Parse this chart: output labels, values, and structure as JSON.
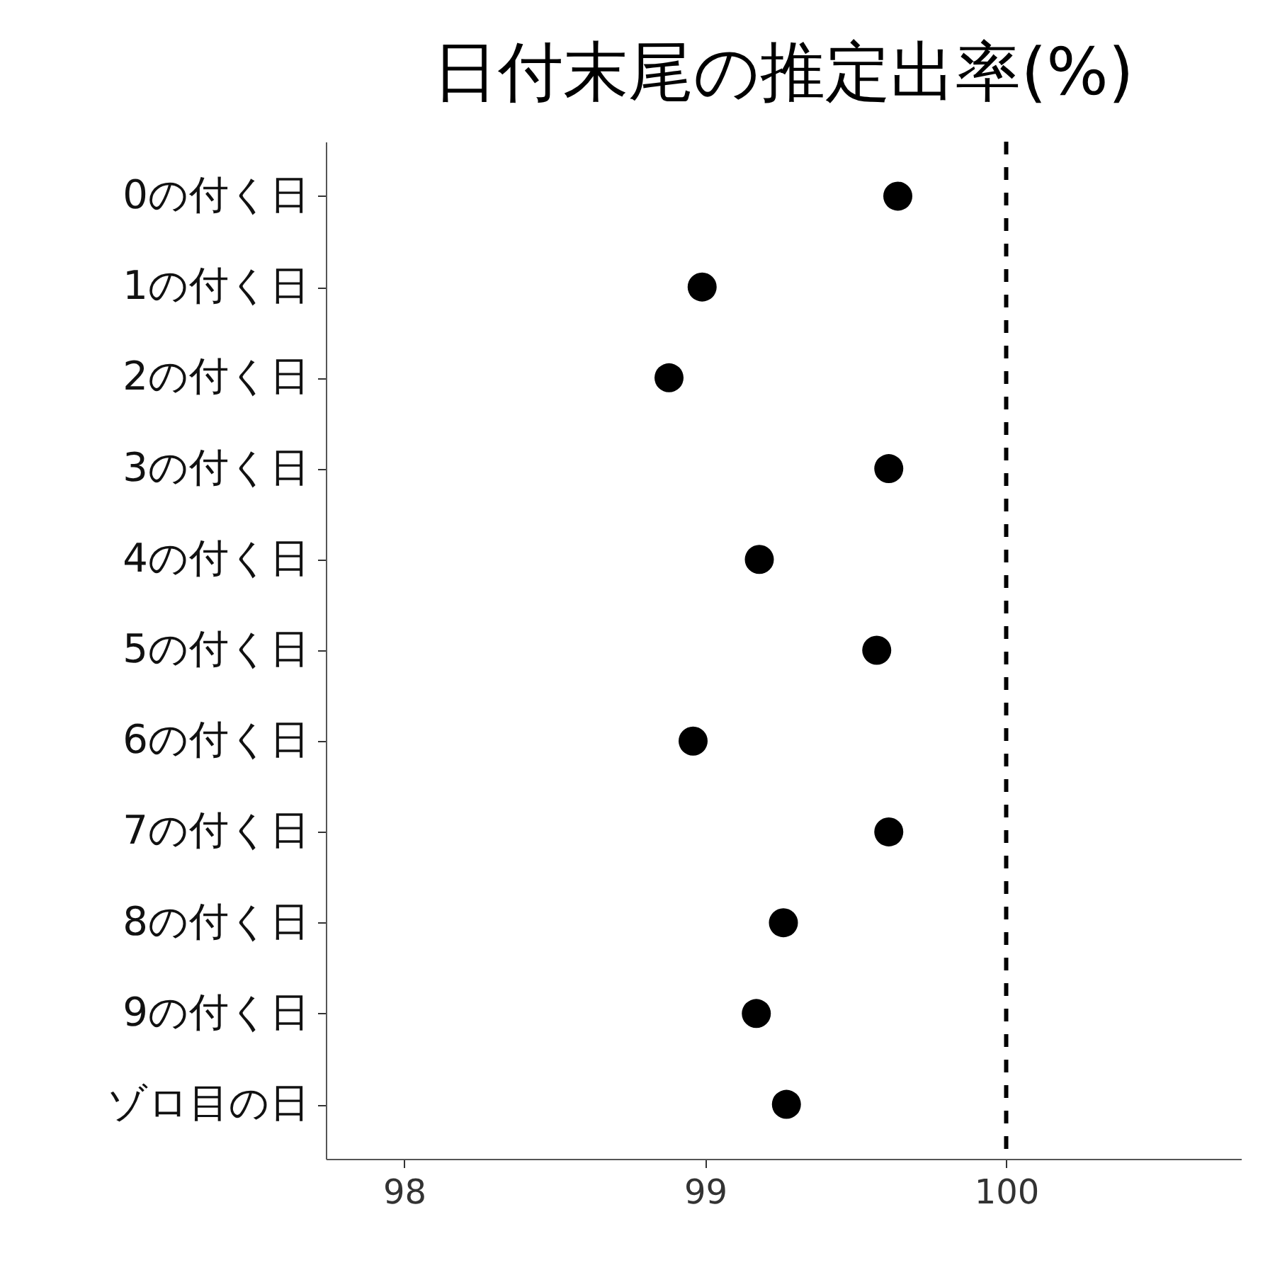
{
  "chart_data": {
    "type": "scatter",
    "title": "日付末尾の推定出率(%)",
    "categories": [
      "0の付く日",
      "1の付く日",
      "2の付く日",
      "3の付く日",
      "4の付く日",
      "5の付く日",
      "6の付く日",
      "7の付く日",
      "8の付く日",
      "9の付く日",
      "ゾロ目の日"
    ],
    "orientation": "horizontal",
    "values": [
      99.64,
      98.99,
      98.88,
      99.61,
      99.18,
      99.57,
      98.96,
      99.61,
      99.26,
      99.17,
      99.27
    ],
    "color": "#000000",
    "marker": "circle",
    "xlim": [
      97.74,
      100.78
    ],
    "xticks": [
      98,
      99,
      100
    ],
    "ref_lines": [
      {
        "axis": "x",
        "value": 100,
        "color": "#000000",
        "line_style": "dashed"
      }
    ],
    "grid": false
  }
}
